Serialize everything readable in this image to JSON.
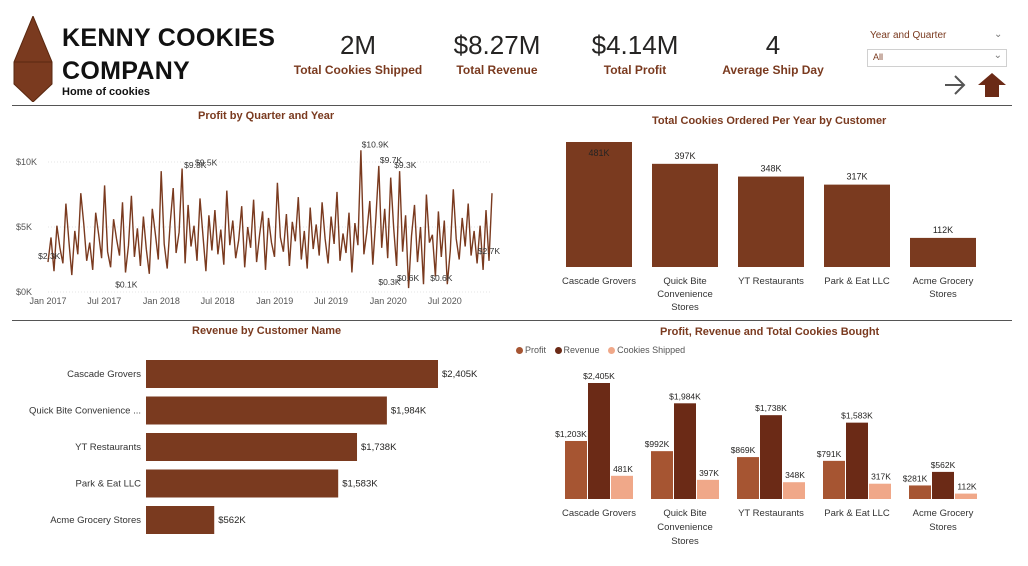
{
  "header": {
    "company": "KENNY COOKIES COMPANY",
    "company_line1": "KENNY COOKIES",
    "company_line2": "COMPANY",
    "tagline": "Home of cookies",
    "logo_color": "#7a3a1f"
  },
  "kpis": [
    {
      "value": "2M",
      "label": "Total Cookies Shipped"
    },
    {
      "value": "$8.27M",
      "label": "Total Revenue"
    },
    {
      "value": "$4.14M",
      "label": "Total Profit"
    },
    {
      "value": "4",
      "label": "Average Ship Day"
    }
  ],
  "slicer": {
    "title": "Year and Quarter",
    "value": "All"
  },
  "nav": {
    "next_icon": "arrow-right-icon",
    "drill_up_icon": "arrow-up-icon"
  },
  "colors": {
    "primary": "#7a3a1f",
    "profit": "#a65532",
    "revenue": "#6b2a16",
    "cookies": "#f0a889"
  },
  "chart_data": [
    {
      "type": "line",
      "title": "Profit by Quarter and Year",
      "y_ticks": [
        "$0K",
        "$5K",
        "$10K"
      ],
      "ylim": [
        0,
        11000
      ],
      "x_ticks": [
        "Jan 2017",
        "Jul 2017",
        "Jan 2018",
        "Jul 2018",
        "Jan 2019",
        "Jul 2019",
        "Jan 2020",
        "Jul 2020"
      ],
      "x_range": [
        "2017-01-01",
        "2020-11-30"
      ],
      "series": [
        {
          "values": [
            2300,
            4200,
            1600,
            5100,
            3400,
            2200,
            6800,
            3900,
            1300,
            4700,
            2900,
            7600,
            5200,
            2400,
            3800,
            1700,
            6100,
            4400,
            2600,
            8200,
            3100,
            1900,
            5600,
            4100,
            2800,
            6900,
            1500,
            3600,
            7400,
            2700,
            4900,
            2000,
            5800,
            3300,
            1400,
            6400,
            4500,
            2500,
            9300,
            3700,
            1800,
            5300,
            8000,
            3000,
            4600,
            9500,
            2200,
            6700,
            3500,
            5100,
            2400,
            7200,
            4300,
            1600,
            5900,
            3200,
            6300,
            2900,
            4800,
            2100,
            7800,
            3600,
            5500,
            2600,
            4000,
            6600,
            1900,
            5000,
            3400,
            7100,
            2300,
            4400,
            6200,
            1700,
            5700,
            3800,
            2700,
            8400,
            4200,
            3100,
            6000,
            2000,
            5400,
            3900,
            7300,
            2500,
            4700,
            1800,
            6500,
            3300,
            5200,
            2800,
            6900,
            4100,
            2200,
            5800,
            3700,
            7700,
            2400,
            4500,
            3000,
            6100,
            1500,
            5300,
            3600,
            10900,
            2900,
            4600,
            7000,
            2100,
            5600,
            9700,
            3400,
            6400,
            2600,
            8800,
            4900,
            2000,
            9300,
            3100,
            5900,
            300,
            4300,
            6700,
            2300,
            5000,
            600,
            7500,
            3800,
            4400,
            1200,
            6200,
            2700,
            5500,
            600,
            3200,
            7900,
            4100,
            2500,
            5700,
            3500,
            6800,
            2800,
            4700,
            2200,
            5100,
            1700,
            6300,
            2400,
            7600
          ]
        }
      ],
      "annotations": [
        {
          "label": "$2.3K",
          "x": "2017-01-05",
          "y": 2300
        },
        {
          "label": "$0.1K",
          "x": "2017-09-10",
          "y": 100
        },
        {
          "label": "$9.3K",
          "x": "2018-04-20",
          "y": 9300
        },
        {
          "label": "$9.5K",
          "x": "2018-05-25",
          "y": 9500
        },
        {
          "label": "$10.9K",
          "x": "2019-11-20",
          "y": 10900
        },
        {
          "label": "$9.7K",
          "x": "2020-01-10",
          "y": 9700
        },
        {
          "label": "$9.3K",
          "x": "2020-02-25",
          "y": 9300
        },
        {
          "label": "$0.3K",
          "x": "2020-01-05",
          "y": 300
        },
        {
          "label": "$0.6K",
          "x": "2020-03-05",
          "y": 600
        },
        {
          "label": "$0.6K",
          "x": "2020-06-20",
          "y": 600
        },
        {
          "label": "$2.7K",
          "x": "2020-11-20",
          "y": 2700
        }
      ]
    },
    {
      "type": "bar",
      "title": "Total Cookies Ordered Per Year by Customer",
      "categories": [
        "Cascade Grovers",
        "Quick Bite Convenience Stores",
        "YT Restaurants",
        "Park & Eat LLC",
        "Acme Grocery Stores"
      ],
      "category_lines": [
        [
          "Cascade Grovers"
        ],
        [
          "Quick Bite",
          "Convenience",
          "Stores"
        ],
        [
          "YT Restaurants"
        ],
        [
          "Park & Eat LLC"
        ],
        [
          "Acme Grocery",
          "Stores"
        ]
      ],
      "values": [
        481,
        397,
        348,
        317,
        112
      ],
      "labels": [
        "481K",
        "397K",
        "348K",
        "317K",
        "112K"
      ],
      "ylim": [
        0,
        481
      ]
    },
    {
      "type": "bar",
      "orientation": "horizontal",
      "title": "Revenue by Customer Name",
      "categories": [
        "Cascade Grovers",
        "Quick Bite Convenience ...",
        "YT Restaurants",
        "Park & Eat LLC",
        "Acme Grocery Stores"
      ],
      "values": [
        2405,
        1984,
        1738,
        1583,
        562
      ],
      "labels": [
        "$2,405K",
        "$1,984K",
        "$1,738K",
        "$1,583K",
        "$562K"
      ],
      "xlim": [
        0,
        2405
      ]
    },
    {
      "type": "bar",
      "title": "Profit, Revenue and Total Cookies Bought",
      "categories": [
        "Cascade Grovers",
        "Quick Bite Convenience Stores",
        "YT Restaurants",
        "Park & Eat LLC",
        "Acme Grocery Stores"
      ],
      "category_lines": [
        [
          "Cascade Grovers"
        ],
        [
          "Quick Bite",
          "Convenience",
          "Stores"
        ],
        [
          "YT Restaurants"
        ],
        [
          "Park & Eat LLC"
        ],
        [
          "Acme Grocery",
          "Stores"
        ]
      ],
      "ylim": [
        0,
        2405
      ],
      "legend_position": "top-left",
      "series": [
        {
          "name": "Profit",
          "color": "#a65532",
          "values": [
            1203,
            992,
            869,
            791,
            281
          ],
          "labels": [
            "$1,203K",
            "$992K",
            "$869K",
            "$791K",
            "$281K"
          ]
        },
        {
          "name": "Revenue",
          "color": "#6b2a16",
          "values": [
            2405,
            1984,
            1738,
            1583,
            562
          ],
          "labels": [
            "$2,405K",
            "$1,984K",
            "$1,738K",
            "$1,583K",
            "$562K"
          ]
        },
        {
          "name": "Cookies Shipped",
          "color": "#f0a889",
          "values": [
            481,
            397,
            348,
            317,
            112
          ],
          "labels": [
            "481K",
            "397K",
            "348K",
            "317K",
            "112K"
          ]
        }
      ]
    }
  ]
}
